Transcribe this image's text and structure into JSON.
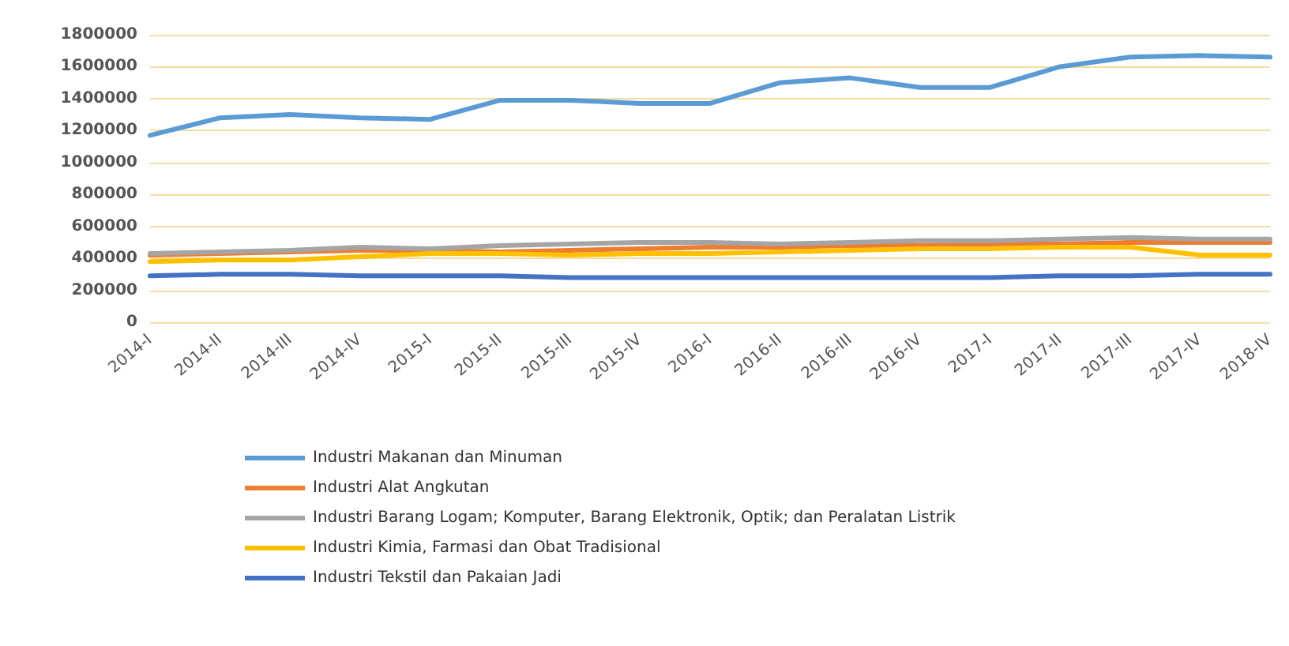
{
  "chart_data": {
    "type": "line",
    "categories": [
      "2014-I",
      "2014-II",
      "2014-III",
      "2014-IV",
      "2015-I",
      "2015-II",
      "2015-III",
      "2015-IV",
      "2016-I",
      "2016-II",
      "2016-III",
      "2016-IV",
      "2017-I",
      "2017-II",
      "2017-III",
      "2017-IV",
      "2018-IV"
    ],
    "series": [
      {
        "name": "Industri Makanan dan Minuman",
        "color": "#5b9bd5",
        "values": [
          1170000,
          1280000,
          1300000,
          1280000,
          1270000,
          1390000,
          1390000,
          1370000,
          1370000,
          1500000,
          1530000,
          1470000,
          1470000,
          1600000,
          1660000,
          1670000,
          1660000
        ]
      },
      {
        "name": "Industri Alat Angkutan",
        "color": "#ed7d31",
        "values": [
          420000,
          430000,
          440000,
          450000,
          450000,
          440000,
          450000,
          460000,
          470000,
          470000,
          480000,
          480000,
          490000,
          490000,
          500000,
          500000,
          500000
        ]
      },
      {
        "name": "Industri Barang Logam; Komputer, Barang Elektronik, Optik; dan Peralatan Listrik",
        "color": "#a5a5a5",
        "values": [
          430000,
          440000,
          450000,
          470000,
          460000,
          480000,
          490000,
          500000,
          500000,
          490000,
          500000,
          510000,
          510000,
          520000,
          530000,
          520000,
          520000
        ]
      },
      {
        "name": "Industri Kimia, Farmasi dan Obat Tradisional",
        "color": "#ffc000",
        "values": [
          380000,
          390000,
          390000,
          410000,
          430000,
          430000,
          420000,
          430000,
          430000,
          440000,
          450000,
          460000,
          460000,
          470000,
          470000,
          420000,
          420000
        ]
      },
      {
        "name": "Industri Tekstil dan Pakaian Jadi",
        "color": "#4472c4",
        "values": [
          290000,
          300000,
          300000,
          290000,
          290000,
          290000,
          280000,
          280000,
          280000,
          280000,
          280000,
          280000,
          280000,
          290000,
          290000,
          300000,
          300000
        ]
      }
    ],
    "ylim": [
      0,
      1800000
    ],
    "yticks": [
      0,
      200000,
      400000,
      600000,
      800000,
      1000000,
      1200000,
      1400000,
      1600000,
      1800000
    ],
    "grid": "y",
    "legend": "bottom",
    "marker": "none",
    "line_style": "solid"
  }
}
